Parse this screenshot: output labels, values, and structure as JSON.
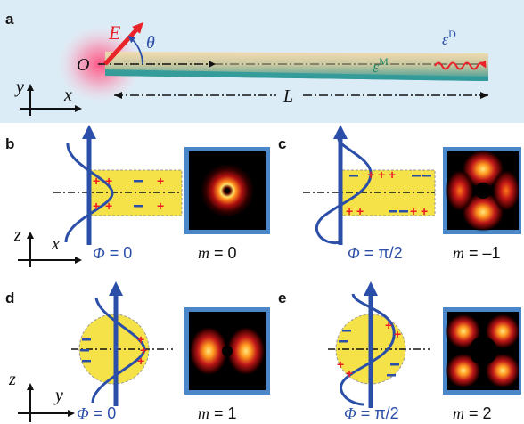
{
  "panels": {
    "a": {
      "label": "a",
      "field_label": "E",
      "angle_label": "θ",
      "origin_label": "O",
      "eps_metal": "ε",
      "eps_metal_sup": "M",
      "eps_dielectric": "ε",
      "eps_dielectric_sup": "D",
      "length_label": "L",
      "axis_y": "y",
      "axis_x": "x"
    },
    "b": {
      "label": "b",
      "phase_sym": "Φ",
      "phase_val": " = 0",
      "mode_sym": "m",
      "mode_val": " = 0",
      "axis_z": "z",
      "axis_x": "x"
    },
    "c": {
      "label": "c",
      "phase_sym": "Φ",
      "phase_val": " = π/2",
      "mode_sym": "m",
      "mode_val": " = –1"
    },
    "d": {
      "label": "d",
      "phase_sym": "Φ",
      "phase_val": " = 0",
      "mode_sym": "m",
      "mode_val": " = 1",
      "axis_z": "z",
      "axis_y": "y"
    },
    "e": {
      "label": "e",
      "phase_sym": "Φ",
      "phase_val": " = π/2",
      "mode_sym": "m",
      "mode_val": " = 2"
    }
  },
  "colors": {
    "panel_a_bg": "#dcecf6",
    "wire_gold": "#e8d2a8",
    "wire_teal": "#2f9a9a",
    "field_red": "#e8232a",
    "wave_blue": "#2b4fa8",
    "charge_plus": "#ee1c24",
    "charge_minus": "#2b4fa8",
    "section_yellow": "#f5e148",
    "frame_blue": "#4a86c8",
    "phase_text": "#2b4fa8"
  }
}
